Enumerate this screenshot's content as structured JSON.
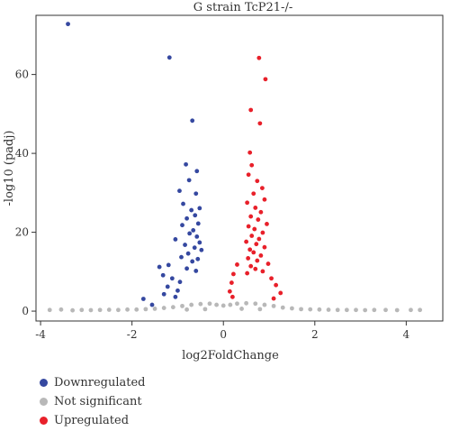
{
  "chart_data": {
    "type": "scatter",
    "title": "G strain TcP21-/-",
    "xlabel": "log2FoldChange",
    "ylabel": "-log10 (padj)",
    "xlim": [
      -4.1,
      4.8
    ],
    "ylim": [
      -2.5,
      75
    ],
    "xticks": [
      -4,
      -2,
      0,
      2,
      4
    ],
    "yticks": [
      0,
      20,
      40,
      60
    ],
    "grid": false,
    "legend_position": "bottom-left",
    "series": [
      {
        "name": "Downregulated",
        "color": "#3548a0",
        "points": [
          [
            -3.4,
            72.8
          ],
          [
            -1.18,
            64.3
          ],
          [
            -0.68,
            48.3
          ],
          [
            -0.82,
            37.2
          ],
          [
            -0.58,
            35.5
          ],
          [
            -0.75,
            33.2
          ],
          [
            -0.96,
            30.5
          ],
          [
            -0.6,
            29.8
          ],
          [
            -0.88,
            27.2
          ],
          [
            -0.52,
            26.1
          ],
          [
            -0.7,
            25.6
          ],
          [
            -0.62,
            24.3
          ],
          [
            -0.8,
            23.5
          ],
          [
            -0.55,
            22.2
          ],
          [
            -0.9,
            21.8
          ],
          [
            -0.66,
            20.5
          ],
          [
            -0.74,
            19.7
          ],
          [
            -0.58,
            18.9
          ],
          [
            -1.05,
            18.2
          ],
          [
            -0.52,
            17.4
          ],
          [
            -0.84,
            16.8
          ],
          [
            -0.63,
            16.1
          ],
          [
            -0.48,
            15.5
          ],
          [
            -0.77,
            14.6
          ],
          [
            -0.92,
            13.7
          ],
          [
            -0.56,
            13.2
          ],
          [
            -0.68,
            12.6
          ],
          [
            -1.2,
            11.7
          ],
          [
            -0.8,
            10.8
          ],
          [
            -0.6,
            10.2
          ],
          [
            -1.4,
            11.2
          ],
          [
            -1.32,
            9.1
          ],
          [
            -1.12,
            8.3
          ],
          [
            -1.22,
            6.2
          ],
          [
            -1.3,
            4.3
          ],
          [
            -1.05,
            3.6
          ],
          [
            -1.75,
            3.1
          ],
          [
            -1.56,
            1.6
          ],
          [
            -1.0,
            5.2
          ],
          [
            -0.95,
            7.4
          ]
        ]
      },
      {
        "name": "Not significant",
        "color": "#b8b8b8",
        "points": [
          [
            -3.8,
            0.3
          ],
          [
            -3.55,
            0.4
          ],
          [
            -3.3,
            0.2
          ],
          [
            -3.1,
            0.3
          ],
          [
            -2.9,
            0.25
          ],
          [
            -2.7,
            0.3
          ],
          [
            -2.5,
            0.35
          ],
          [
            -2.3,
            0.3
          ],
          [
            -2.1,
            0.4
          ],
          [
            -1.9,
            0.4
          ],
          [
            -1.7,
            0.5
          ],
          [
            -1.5,
            0.6
          ],
          [
            -1.3,
            0.8
          ],
          [
            -1.1,
            1.0
          ],
          [
            -0.9,
            1.3
          ],
          [
            -0.7,
            1.6
          ],
          [
            -0.5,
            1.8
          ],
          [
            -0.3,
            1.9
          ],
          [
            -0.15,
            1.6
          ],
          [
            0.0,
            1.4
          ],
          [
            0.15,
            1.6
          ],
          [
            0.3,
            1.9
          ],
          [
            0.5,
            2.0
          ],
          [
            0.7,
            1.9
          ],
          [
            0.9,
            1.6
          ],
          [
            1.1,
            1.3
          ],
          [
            1.3,
            0.9
          ],
          [
            1.5,
            0.7
          ],
          [
            1.7,
            0.5
          ],
          [
            1.9,
            0.45
          ],
          [
            2.1,
            0.4
          ],
          [
            2.3,
            0.35
          ],
          [
            2.5,
            0.3
          ],
          [
            2.7,
            0.3
          ],
          [
            2.9,
            0.3
          ],
          [
            3.1,
            0.25
          ],
          [
            3.3,
            0.3
          ],
          [
            3.55,
            0.3
          ],
          [
            3.8,
            0.25
          ],
          [
            4.1,
            0.3
          ],
          [
            4.3,
            0.3
          ],
          [
            -0.4,
            0.5
          ],
          [
            0.4,
            0.6
          ],
          [
            -0.8,
            0.4
          ],
          [
            0.8,
            0.5
          ]
        ]
      },
      {
        "name": "Upregulated",
        "color": "#e8202a",
        "points": [
          [
            0.78,
            64.2
          ],
          [
            0.92,
            58.8
          ],
          [
            0.6,
            51.0
          ],
          [
            0.8,
            47.6
          ],
          [
            0.58,
            40.2
          ],
          [
            0.62,
            37.0
          ],
          [
            0.55,
            34.6
          ],
          [
            0.74,
            33.0
          ],
          [
            0.85,
            31.2
          ],
          [
            0.66,
            29.8
          ],
          [
            0.9,
            28.3
          ],
          [
            0.52,
            27.5
          ],
          [
            0.7,
            26.2
          ],
          [
            0.82,
            25.1
          ],
          [
            0.6,
            24.0
          ],
          [
            0.76,
            23.2
          ],
          [
            0.95,
            22.1
          ],
          [
            0.55,
            21.5
          ],
          [
            0.68,
            20.8
          ],
          [
            0.86,
            19.9
          ],
          [
            0.62,
            19.1
          ],
          [
            0.78,
            18.3
          ],
          [
            0.5,
            17.6
          ],
          [
            0.72,
            17.0
          ],
          [
            0.9,
            16.2
          ],
          [
            0.58,
            15.6
          ],
          [
            0.66,
            14.9
          ],
          [
            0.82,
            14.1
          ],
          [
            0.54,
            13.4
          ],
          [
            0.74,
            12.8
          ],
          [
            0.98,
            12.0
          ],
          [
            0.6,
            11.4
          ],
          [
            0.7,
            10.7
          ],
          [
            0.86,
            10.1
          ],
          [
            0.52,
            9.6
          ],
          [
            0.3,
            11.8
          ],
          [
            0.22,
            9.4
          ],
          [
            0.18,
            7.2
          ],
          [
            0.14,
            5.0
          ],
          [
            1.05,
            8.3
          ],
          [
            1.15,
            6.6
          ],
          [
            1.25,
            4.6
          ],
          [
            1.1,
            3.2
          ],
          [
            0.2,
            3.6
          ]
        ]
      }
    ]
  },
  "legend": [
    {
      "label": "Downregulated",
      "color": "#3548a0"
    },
    {
      "label": "Not significant",
      "color": "#b8b8b8"
    },
    {
      "label": "Upregulated",
      "color": "#e8202a"
    }
  ]
}
